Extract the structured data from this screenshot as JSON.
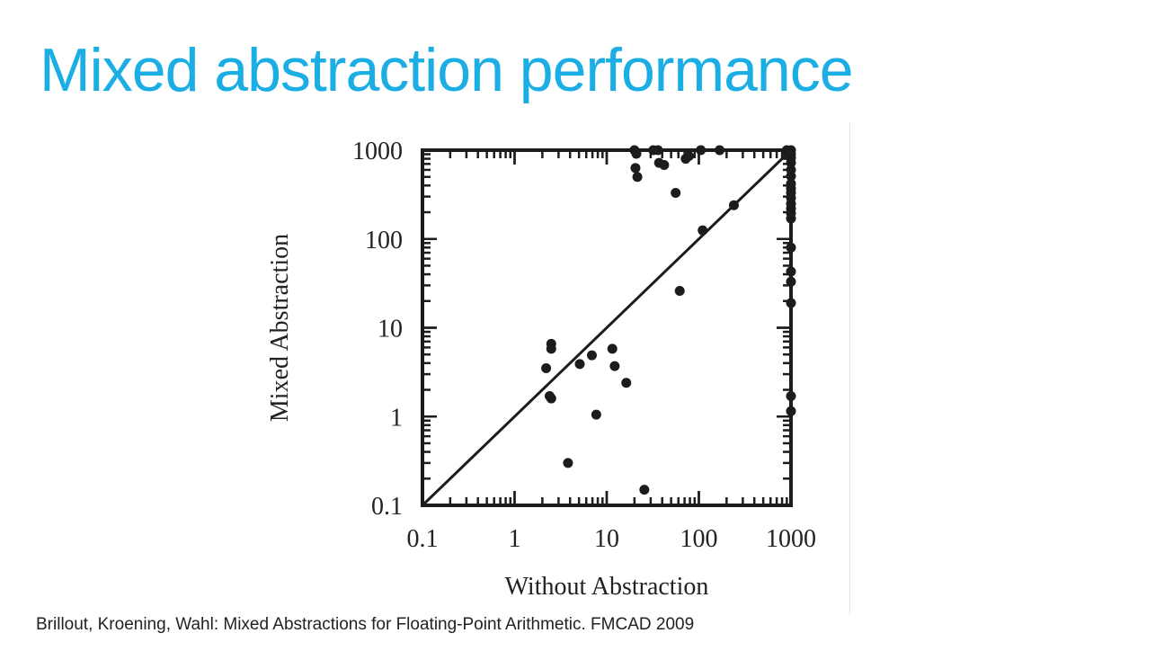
{
  "slide": {
    "title": "Mixed abstraction performance",
    "title_color": "#1aaee4",
    "citation": "Brillout, Kroening, Wahl: Mixed Abstractions for Floating-Point Arithmetic. FMCAD 2009"
  },
  "chart_data": {
    "type": "scatter",
    "title": "",
    "xlabel": "Without Abstraction",
    "ylabel": "Mixed Abstraction",
    "x_scale": "log",
    "y_scale": "log",
    "xlim": [
      0.1,
      1000
    ],
    "ylim": [
      0.1,
      1000
    ],
    "x_ticks": [
      {
        "value": 0.1,
        "label": "0.1"
      },
      {
        "value": 1,
        "label": "1"
      },
      {
        "value": 10,
        "label": "10"
      },
      {
        "value": 100,
        "label": "100"
      },
      {
        "value": 1000,
        "label": "1000"
      }
    ],
    "y_ticks": [
      {
        "value": 0.1,
        "label": "0.1"
      },
      {
        "value": 1,
        "label": "1"
      },
      {
        "value": 10,
        "label": "10"
      },
      {
        "value": 100,
        "label": "100"
      },
      {
        "value": 1000,
        "label": "1000"
      }
    ],
    "grid": false,
    "legend": "none",
    "reference_line": "y = x",
    "point_color": "#1c1c1c",
    "points": [
      {
        "x": 2.2,
        "y": 3.5
      },
      {
        "x": 2.5,
        "y": 6.6
      },
      {
        "x": 2.5,
        "y": 5.8
      },
      {
        "x": 2.4,
        "y": 1.7
      },
      {
        "x": 2.5,
        "y": 1.6
      },
      {
        "x": 3.8,
        "y": 0.3
      },
      {
        "x": 5.1,
        "y": 3.9
      },
      {
        "x": 6.9,
        "y": 4.9
      },
      {
        "x": 7.7,
        "y": 1.05
      },
      {
        "x": 11.5,
        "y": 5.8
      },
      {
        "x": 12.2,
        "y": 3.7
      },
      {
        "x": 16.3,
        "y": 2.4
      },
      {
        "x": 25.6,
        "y": 0.15
      },
      {
        "x": 20,
        "y": 1000
      },
      {
        "x": 21,
        "y": 910
      },
      {
        "x": 20.5,
        "y": 630
      },
      {
        "x": 21.5,
        "y": 500
      },
      {
        "x": 32,
        "y": 1000
      },
      {
        "x": 36,
        "y": 1000
      },
      {
        "x": 37,
        "y": 720
      },
      {
        "x": 42,
        "y": 680
      },
      {
        "x": 56,
        "y": 330
      },
      {
        "x": 72,
        "y": 800
      },
      {
        "x": 78,
        "y": 860
      },
      {
        "x": 105,
        "y": 1000
      },
      {
        "x": 168,
        "y": 1000
      },
      {
        "x": 110,
        "y": 125
      },
      {
        "x": 62,
        "y": 26
      },
      {
        "x": 240,
        "y": 240
      },
      {
        "x": 900,
        "y": 1000
      },
      {
        "x": 1000,
        "y": 1000
      },
      {
        "x": 1000,
        "y": 900
      },
      {
        "x": 1000,
        "y": 820
      },
      {
        "x": 1000,
        "y": 720
      },
      {
        "x": 1000,
        "y": 600
      },
      {
        "x": 1000,
        "y": 510
      },
      {
        "x": 1000,
        "y": 420
      },
      {
        "x": 1000,
        "y": 370
      },
      {
        "x": 1000,
        "y": 330
      },
      {
        "x": 1000,
        "y": 290
      },
      {
        "x": 1000,
        "y": 250
      },
      {
        "x": 1000,
        "y": 220
      },
      {
        "x": 1000,
        "y": 195
      },
      {
        "x": 1000,
        "y": 170
      },
      {
        "x": 1000,
        "y": 80
      },
      {
        "x": 1000,
        "y": 43
      },
      {
        "x": 1000,
        "y": 33
      },
      {
        "x": 1000,
        "y": 19
      },
      {
        "x": 1000,
        "y": 1.7
      },
      {
        "x": 1000,
        "y": 1.15
      }
    ]
  }
}
